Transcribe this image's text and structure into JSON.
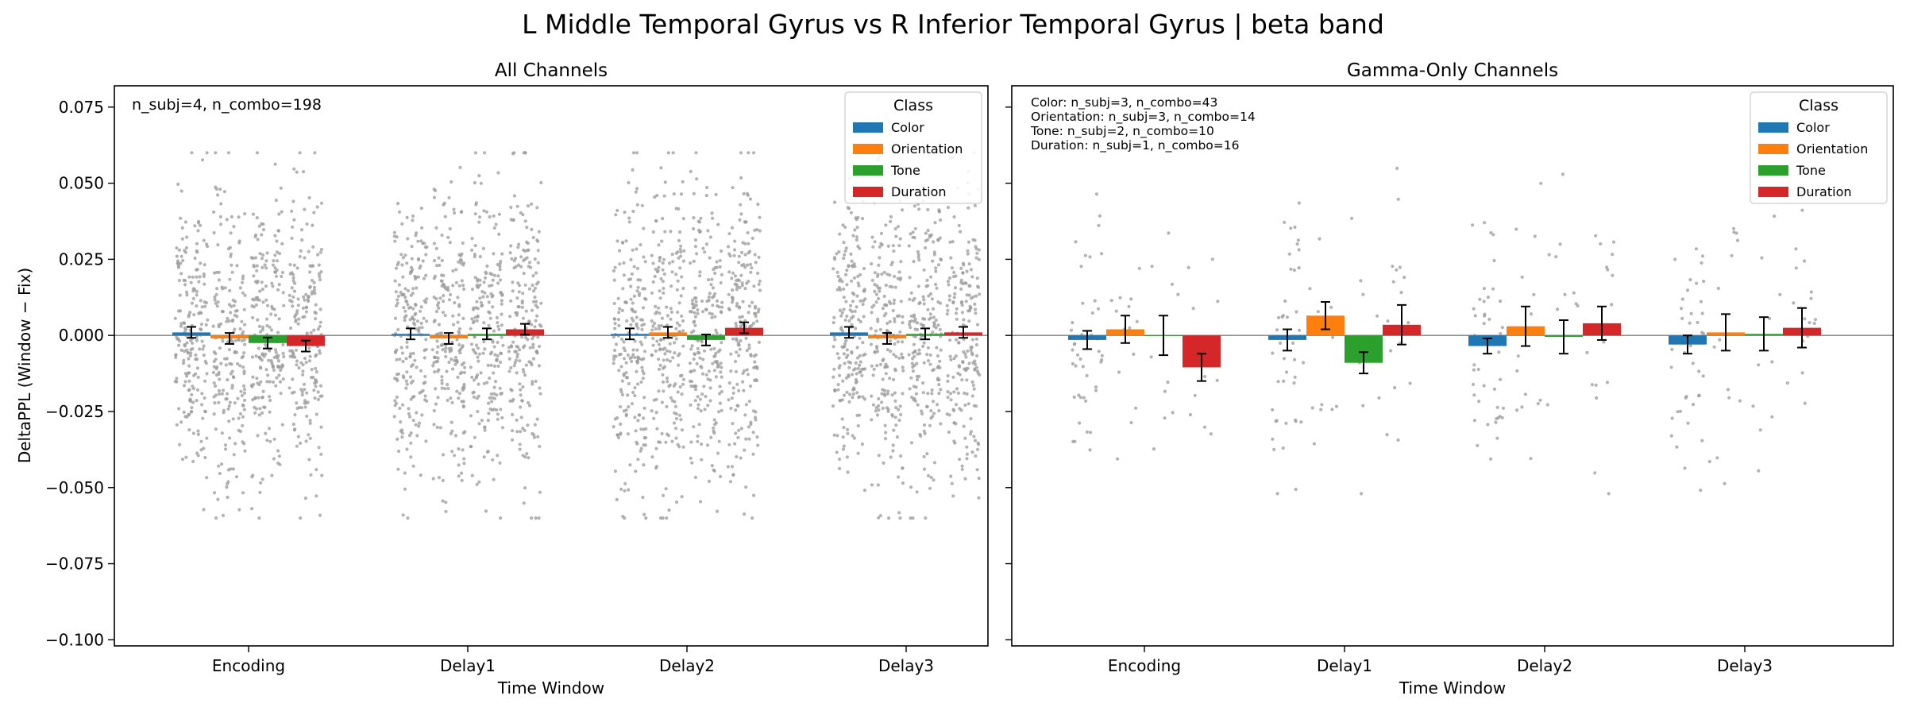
{
  "figure": {
    "suptitle": "L Middle Temporal Gyrus vs R Inferior Temporal Gyrus  |  beta band"
  },
  "colors": {
    "Color": "#1f77b4",
    "Orientation": "#ff7f0e",
    "Tone": "#2ca02c",
    "Duration": "#d62728",
    "scatter": "#9a9a9a",
    "zero_line": "#808080",
    "error_bar": "#000000"
  },
  "chart_data": [
    {
      "type": "bar",
      "title": "All Channels",
      "xlabel": "Time Window",
      "ylabel": "DeltaPPL (Window − Fix)",
      "categories": [
        "Encoding",
        "Delay1",
        "Delay2",
        "Delay3"
      ],
      "ylim": [
        -0.102,
        0.082
      ],
      "yticks": [
        0.075,
        0.05,
        0.025,
        0.0,
        -0.025,
        -0.05,
        -0.075,
        -0.1
      ],
      "ytick_labels": [
        "0.075",
        "0.050",
        "0.025",
        "0.000",
        "−0.025",
        "−0.050",
        "−0.075",
        "−0.100"
      ],
      "grid": false,
      "legend": {
        "title": "Class",
        "placement": "top-right"
      },
      "annotations": [
        "n_subj=4, n_combo=198"
      ],
      "series": [
        {
          "name": "Color",
          "values": [
            0.001,
            0.0005,
            0.0005,
            0.001
          ],
          "err": [
            0.0018,
            0.0018,
            0.0018,
            0.0018
          ]
        },
        {
          "name": "Orientation",
          "values": [
            -0.001,
            -0.001,
            0.001,
            -0.001
          ],
          "err": [
            0.0018,
            0.0018,
            0.0018,
            0.0018
          ]
        },
        {
          "name": "Tone",
          "values": [
            -0.0025,
            0.0005,
            -0.0015,
            0.0005
          ],
          "err": [
            0.0018,
            0.0018,
            0.0018,
            0.0018
          ]
        },
        {
          "name": "Duration",
          "values": [
            -0.0035,
            0.002,
            0.0025,
            0.001
          ],
          "err": [
            0.0018,
            0.0018,
            0.0018,
            0.0018
          ]
        }
      ],
      "scatter": {
        "n_per_group": 198,
        "spread": 0.024,
        "range": [
          -0.06,
          0.06
        ]
      }
    },
    {
      "type": "bar",
      "title": "Gamma-Only Channels",
      "xlabel": "Time Window",
      "ylabel": "",
      "categories": [
        "Encoding",
        "Delay1",
        "Delay2",
        "Delay3"
      ],
      "ylim": [
        -0.102,
        0.082
      ],
      "yticks": [
        0.075,
        0.05,
        0.025,
        0.0,
        -0.025,
        -0.05,
        -0.075,
        -0.1
      ],
      "ytick_labels": [],
      "grid": false,
      "legend": {
        "title": "Class",
        "placement": "top-right"
      },
      "annotations": [
        "Color: n_subj=3, n_combo=43",
        "Orientation: n_subj=3, n_combo=14",
        "Tone: n_subj=2, n_combo=10",
        "Duration: n_subj=1, n_combo=16"
      ],
      "series": [
        {
          "name": "Color",
          "values": [
            -0.0015,
            -0.0015,
            -0.0035,
            -0.003
          ],
          "err": [
            0.003,
            0.0035,
            0.0025,
            0.003
          ]
        },
        {
          "name": "Orientation",
          "values": [
            0.002,
            0.0065,
            0.003,
            0.001
          ],
          "err": [
            0.0045,
            0.0045,
            0.0065,
            0.006
          ]
        },
        {
          "name": "Tone",
          "values": [
            0.0,
            -0.009,
            -0.0005,
            0.0005
          ],
          "err": [
            0.0065,
            0.0035,
            0.0055,
            0.0055
          ]
        },
        {
          "name": "Duration",
          "values": [
            -0.0105,
            0.0035,
            0.004,
            0.0025
          ],
          "err": [
            0.0045,
            0.0065,
            0.0055,
            0.0065
          ]
        }
      ],
      "scatter": {
        "n_per_group": [
          43,
          14,
          10,
          16
        ],
        "spread": 0.022,
        "range": [
          -0.052,
          0.058
        ]
      }
    }
  ]
}
